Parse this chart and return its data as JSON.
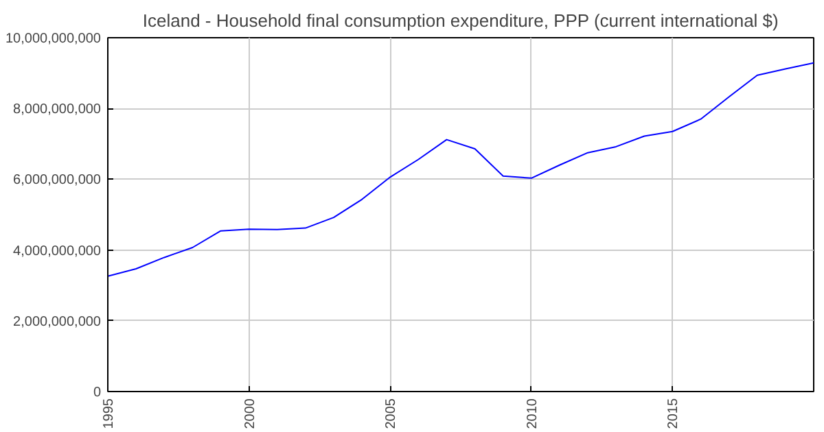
{
  "chart_data": {
    "type": "line",
    "title": "Iceland - Household final consumption expenditure, PPP (current international $)",
    "x": [
      1995,
      1996,
      1997,
      1998,
      1999,
      2000,
      2001,
      2002,
      2003,
      2004,
      2005,
      2006,
      2007,
      2008,
      2009,
      2010,
      2011,
      2012,
      2013,
      2014,
      2015,
      2016,
      2017,
      2018,
      2019,
      2020
    ],
    "series": [
      {
        "color": "#0000ff",
        "values": [
          3260000000,
          3470000000,
          3790000000,
          4070000000,
          4540000000,
          4590000000,
          4580000000,
          4620000000,
          4920000000,
          5430000000,
          6060000000,
          6560000000,
          7120000000,
          6860000000,
          6090000000,
          6030000000,
          6400000000,
          6750000000,
          6920000000,
          7220000000,
          7350000000,
          7700000000,
          8330000000,
          8940000000,
          9120000000,
          9290000000
        ]
      }
    ],
    "xlim": [
      1995,
      2020
    ],
    "xticks": [
      1995,
      2000,
      2005,
      2010,
      2015
    ],
    "ylim": [
      0,
      10000000000
    ],
    "yticks": [
      {
        "value": 0,
        "label": "0"
      },
      {
        "value": 2000000000,
        "label": "2,000,000,000"
      },
      {
        "value": 4000000000,
        "label": "4,000,000,000"
      },
      {
        "value": 6000000000,
        "label": "6,000,000,000"
      },
      {
        "value": 8000000000,
        "label": "8,000,000,000"
      },
      {
        "value": 10000000000,
        "label": "10,000,000,000"
      }
    ],
    "grid": true
  }
}
